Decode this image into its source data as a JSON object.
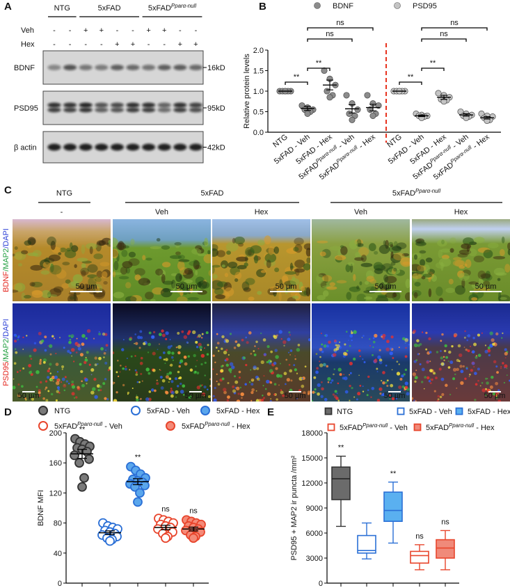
{
  "panel_a": {
    "label": "A",
    "groups": [
      "NTG",
      "5xFAD",
      {
        "base": "5xFAD",
        "sup": "Pparα-null"
      }
    ],
    "treatments": [
      {
        "name": "Veh",
        "signs": [
          "-",
          "-",
          "+",
          "+",
          "-",
          "-",
          "+",
          "+",
          "-",
          "-"
        ]
      },
      {
        "name": "Hex",
        "signs": [
          "-",
          "-",
          "-",
          "-",
          "+",
          "+",
          "-",
          "-",
          "+",
          "+"
        ]
      }
    ],
    "blots": [
      {
        "name": "BDNF",
        "size": "16kD"
      },
      {
        "name": "PSD95",
        "size": "95kD"
      },
      {
        "name": "β actin",
        "size": "42kD"
      }
    ]
  },
  "panel_c": {
    "label": "C",
    "groups": [
      "NTG",
      "5xFAD",
      {
        "base": "5xFAD",
        "sup": "Pparα-null"
      }
    ],
    "columns": [
      "-",
      "Veh",
      "Hex",
      "Veh",
      "Hex"
    ],
    "rows": [
      {
        "parts": [
          {
            "text": "BDNF",
            "color": "#e3241c"
          },
          {
            "text": "/MAP2",
            "color": "#1f9e3e"
          },
          {
            "text": "/DAPI",
            "color": "#2b3fd6"
          }
        ]
      },
      {
        "parts": [
          {
            "text": "PSD95",
            "color": "#e3241c"
          },
          {
            "text": "/MAP2",
            "color": "#1f9e3e"
          },
          {
            "text": "/DAPI",
            "color": "#2b3fd6"
          }
        ]
      }
    ],
    "scale_bar": "50 µm"
  },
  "chart_data": [
    {
      "type": "dot",
      "label": "B",
      "y_label": "Relative protein levels",
      "categories": [
        "NTG",
        "5xFAD - Veh",
        "5xFAD - Hex",
        {
          "base": "5xFAD",
          "sup": "Pparα-null",
          "rest": " - Veh"
        },
        {
          "base": "5xFAD",
          "sup": "Pparα-null",
          "rest": " - Hex"
        }
      ],
      "ylim": [
        0,
        2
      ],
      "yticks": [
        {
          "value": 0,
          "label": "0.0"
        },
        0.5,
        {
          "value": 1,
          "label": "1.0"
        },
        1.5,
        {
          "value": 2,
          "label": "2.0"
        }
      ],
      "series": [
        {
          "name": "BDNF",
          "color": "#8c8c8c",
          "values": [
            1,
            0.58,
            1.15,
            0.57,
            0.6
          ],
          "errors": [
            0,
            0.05,
            0.12,
            0.1,
            0.08
          ],
          "points": [
            [
              1,
              1,
              1,
              1,
              1,
              1
            ],
            [
              0.65,
              0.6,
              0.55,
              0.55,
              0.5,
              0.45
            ],
            [
              1.5,
              1.3,
              1.15,
              1.0,
              0.9,
              0.85
            ],
            [
              0.9,
              0.7,
              0.55,
              0.45,
              0.4,
              0.3
            ],
            [
              0.9,
              0.7,
              0.65,
              0.55,
              0.45,
              0.4
            ]
          ]
        },
        {
          "name": "PSD95",
          "color": "#c4c4c4",
          "values": [
            1,
            0.4,
            0.85,
            0.42,
            0.35
          ],
          "errors": [
            0,
            0.02,
            0.05,
            0.03,
            0.03
          ],
          "points": [
            [
              1,
              1,
              1,
              1,
              1,
              1
            ],
            [
              0.45,
              0.42,
              0.4,
              0.4,
              0.38,
              0.35
            ],
            [
              0.95,
              0.9,
              0.85,
              0.8,
              0.78,
              0.75
            ],
            [
              0.5,
              0.45,
              0.42,
              0.4,
              0.38,
              0.35
            ],
            [
              0.45,
              0.4,
              0.38,
              0.35,
              0.3,
              0.28
            ]
          ]
        }
      ],
      "annotations": [
        "**",
        "**",
        "ns",
        "ns",
        "**",
        "**",
        "ns",
        "ns"
      ]
    },
    {
      "type": "strip",
      "label": "D",
      "y_label": "BDNF MFI",
      "ylim": [
        0,
        200
      ],
      "yticks": [
        0,
        40,
        80,
        120,
        160,
        200
      ],
      "series": [
        {
          "name": "NTG",
          "color": "#333333",
          "fill": "#7a7a7a",
          "filled": true,
          "values": [
            192,
            188,
            185,
            182,
            180,
            178,
            175,
            170,
            165,
            160,
            140,
            128
          ],
          "mean": 172,
          "error": 6,
          "annotation": "**"
        },
        {
          "name": "5xFAD - Veh",
          "color": "#2a6fd6",
          "fill": "#ffffff",
          "filled": false,
          "values": [
            80,
            76,
            74,
            72,
            70,
            68,
            66,
            64,
            62,
            60,
            58,
            56
          ],
          "mean": 67,
          "error": 2.5
        },
        {
          "name": "5xFAD - Hex",
          "color": "#2a6fd6",
          "fill": "#5aa6ec",
          "filled": true,
          "values": [
            155,
            150,
            145,
            140,
            138,
            136,
            134,
            132,
            130,
            128,
            120,
            108
          ],
          "mean": 135,
          "error": 4,
          "annotation": "**"
        },
        {
          "name": {
            "base": "5xFAD",
            "sup": "Pparα-null",
            "rest": " - Veh"
          },
          "color": "#e8452c",
          "fill": "#ffffff",
          "filled": false,
          "values": [
            86,
            84,
            82,
            80,
            78,
            76,
            74,
            72,
            68,
            66,
            62,
            60
          ],
          "mean": 74,
          "error": 3,
          "annotation": "ns"
        },
        {
          "name": {
            "base": "5xFAD",
            "sup": "Pparα-null",
            "rest": " - Hex"
          },
          "color": "#e8452c",
          "fill": "#f48a78",
          "filled": true,
          "values": [
            84,
            82,
            80,
            78,
            76,
            74,
            72,
            70,
            68,
            64,
            62,
            60
          ],
          "mean": 72,
          "error": 2.5,
          "annotation": "ns"
        }
      ]
    },
    {
      "type": "box",
      "label": "E",
      "y_label": "PSD95 + MAP2 ir puncta /mm²",
      "ylim": [
        0,
        18000
      ],
      "yticks": [
        0,
        3000,
        6000,
        9000,
        12000,
        15000,
        18000
      ],
      "series": [
        {
          "name": "NTG",
          "color": "#333333",
          "fill": "#6b6b6b",
          "filled": true,
          "min": 6800,
          "q1": 10000,
          "median": 12500,
          "q3": 13900,
          "max": 15200,
          "annotation": "**"
        },
        {
          "name": "5xFAD - Veh",
          "color": "#2a6fd6",
          "fill": "#ffffff",
          "filled": false,
          "min": 2900,
          "q1": 3600,
          "median": 3900,
          "q3": 5700,
          "max": 7200
        },
        {
          "name": "5xFAD - Hex",
          "color": "#2a6fd6",
          "fill": "#5ab0f0",
          "filled": true,
          "min": 4800,
          "q1": 7400,
          "median": 8700,
          "q3": 10900,
          "max": 12100,
          "annotation": "**"
        },
        {
          "name": {
            "base": "5xFAD",
            "sup": "Pparα-null",
            "rest": " - Veh"
          },
          "color": "#e8452c",
          "fill": "#ffffff",
          "filled": false,
          "min": 1600,
          "q1": 2400,
          "median": 3300,
          "q3": 3800,
          "max": 4600,
          "annotation": "ns"
        },
        {
          "name": {
            "base": "5xFAD",
            "sup": "Pparα-null",
            "rest": " - Hex"
          },
          "color": "#e8452c",
          "fill": "#f08a7a",
          "filled": true,
          "min": 1600,
          "q1": 3000,
          "median": 4200,
          "q3": 5200,
          "max": 6300,
          "annotation": "ns"
        }
      ]
    }
  ]
}
